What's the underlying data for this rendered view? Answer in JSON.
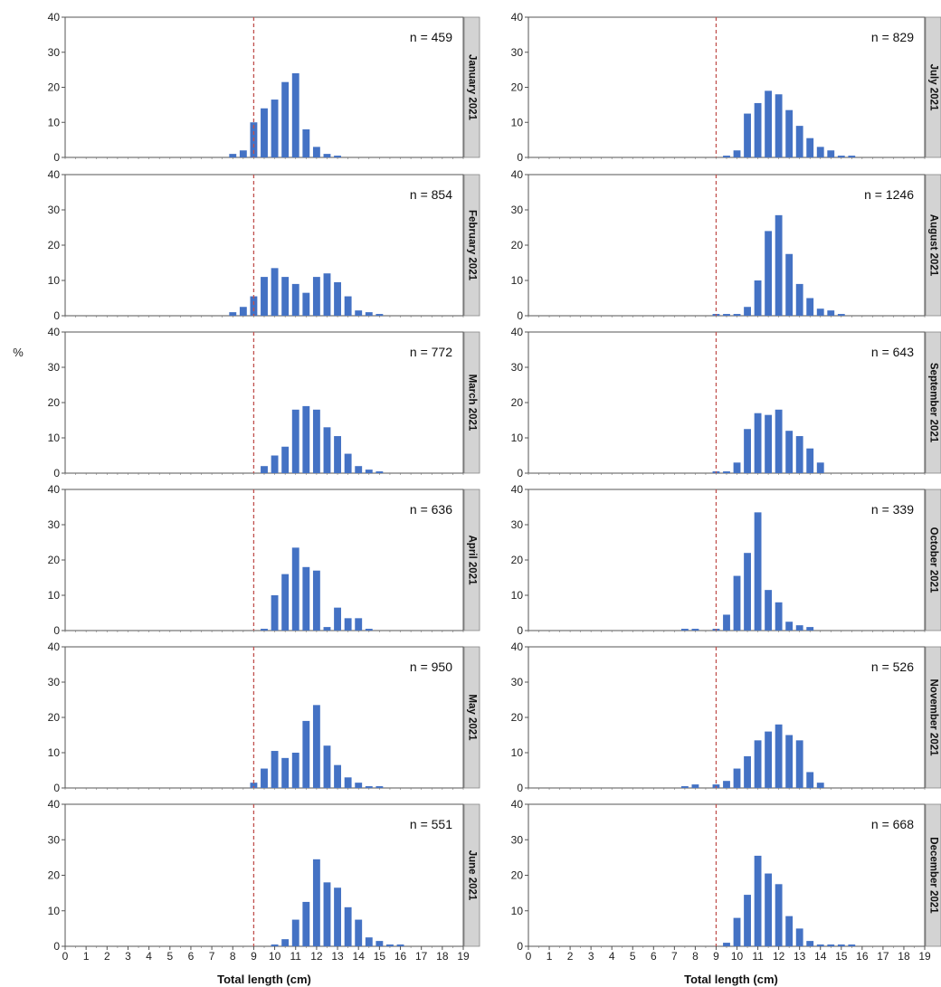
{
  "figure": {
    "ylabel": "%",
    "xlabel": "Total length (cm)",
    "x_ticks": [
      "0",
      "1",
      "2",
      "3",
      "4",
      "5",
      "6",
      "7",
      "8",
      "9",
      "10",
      "11",
      "12",
      "13",
      "14",
      "15",
      "16",
      "17",
      "18",
      "19"
    ],
    "y_ticks": [
      "0",
      "10",
      "20",
      "30",
      "40"
    ],
    "n_prefix": "n = ",
    "colors": {
      "bar": "#4472C4",
      "reference_line": "#C0504D",
      "strip": "#D3D3D3"
    }
  },
  "chart_data": [
    {
      "type": "bar",
      "panel": "January 2021",
      "n": "459",
      "x": [
        8,
        8.5,
        9,
        9.5,
        10,
        10.5,
        11,
        11.5,
        12,
        12.5,
        13
      ],
      "values": [
        1,
        2,
        10,
        14,
        16.5,
        21.5,
        24,
        8,
        3,
        1,
        0.5
      ],
      "xlim": [
        0,
        19
      ],
      "ylim": [
        0,
        40
      ],
      "reference_line_x": 9
    },
    {
      "type": "bar",
      "panel": "February 2021",
      "n": "854",
      "x": [
        8,
        8.5,
        9,
        9.5,
        10,
        10.5,
        11,
        11.5,
        12,
        12.5,
        13,
        13.5,
        14,
        14.5,
        15
      ],
      "values": [
        1,
        2.5,
        5.5,
        11,
        13.5,
        11,
        9,
        6.5,
        11,
        12,
        9.5,
        5.5,
        1.5,
        1,
        0.5
      ],
      "xlim": [
        0,
        19
      ],
      "ylim": [
        0,
        40
      ],
      "reference_line_x": 9
    },
    {
      "type": "bar",
      "panel": "March 2021",
      "n": "772",
      "x": [
        9.5,
        10,
        10.5,
        11,
        11.5,
        12,
        12.5,
        13,
        13.5,
        14,
        14.5,
        15
      ],
      "values": [
        2,
        5,
        7.5,
        18,
        19,
        18,
        13,
        10.5,
        5.5,
        2,
        1,
        0.5
      ],
      "xlim": [
        0,
        19
      ],
      "ylim": [
        0,
        40
      ],
      "reference_line_x": 9
    },
    {
      "type": "bar",
      "panel": "April 2021",
      "n": "636",
      "x": [
        9.5,
        10,
        10.5,
        11,
        11.5,
        12,
        12.5,
        13,
        13.5,
        14,
        14.5
      ],
      "values": [
        0.5,
        10,
        16,
        23.5,
        18,
        17,
        1,
        6.5,
        3.5,
        3.5,
        0.5
      ],
      "xlim": [
        0,
        19
      ],
      "ylim": [
        0,
        40
      ],
      "reference_line_x": 9
    },
    {
      "type": "bar",
      "panel": "May 2021",
      "n": "950",
      "x": [
        9,
        9.5,
        10,
        10.5,
        11,
        11.5,
        12,
        12.5,
        13,
        13.5,
        14,
        14.5,
        15
      ],
      "values": [
        1.5,
        5.5,
        10.5,
        8.5,
        10,
        19,
        23.5,
        12,
        6.5,
        3,
        1.5,
        0.5,
        0.5
      ],
      "xlim": [
        0,
        19
      ],
      "ylim": [
        0,
        40
      ],
      "reference_line_x": 9
    },
    {
      "type": "bar",
      "panel": "June 2021",
      "n": "551",
      "x": [
        10,
        10.5,
        11,
        11.5,
        12,
        12.5,
        13,
        13.5,
        14,
        14.5,
        15,
        15.5,
        16
      ],
      "values": [
        0.5,
        2,
        7.5,
        12.5,
        24.5,
        18,
        16.5,
        11,
        7.5,
        2.5,
        1.5,
        0.5,
        0.5
      ],
      "xlim": [
        0,
        19
      ],
      "ylim": [
        0,
        40
      ],
      "reference_line_x": 9
    },
    {
      "type": "bar",
      "panel": "July 2021",
      "n": "829",
      "x": [
        9.5,
        10,
        10.5,
        11,
        11.5,
        12,
        12.5,
        13,
        13.5,
        14,
        14.5,
        15,
        15.5
      ],
      "values": [
        0.5,
        2,
        12.5,
        15.5,
        19,
        18,
        13.5,
        9,
        5.5,
        3,
        2,
        0.5,
        0.5
      ],
      "xlim": [
        0,
        19
      ],
      "ylim": [
        0,
        40
      ],
      "reference_line_x": 9
    },
    {
      "type": "bar",
      "panel": "August 2021",
      "n": "1246",
      "x": [
        9,
        9.5,
        10,
        10.5,
        11,
        11.5,
        12,
        12.5,
        13,
        13.5,
        14,
        14.5,
        15
      ],
      "values": [
        0.5,
        0.5,
        0.5,
        2.5,
        10,
        24,
        28.5,
        17.5,
        9,
        5,
        2,
        1.5,
        0.5
      ],
      "xlim": [
        0,
        19
      ],
      "ylim": [
        0,
        40
      ],
      "reference_line_x": 9
    },
    {
      "type": "bar",
      "panel": "September 2021",
      "n": "643",
      "x": [
        9,
        9.5,
        10,
        10.5,
        11,
        11.5,
        12,
        12.5,
        13,
        13.5,
        14
      ],
      "values": [
        0.5,
        0.5,
        3,
        12.5,
        17,
        16.5,
        18,
        12,
        10.5,
        7,
        3
      ],
      "xlim": [
        0,
        19
      ],
      "ylim": [
        0,
        40
      ],
      "reference_line_x": 9
    },
    {
      "type": "bar",
      "panel": "October 2021",
      "n": "339",
      "x": [
        7.5,
        8,
        9,
        9.5,
        10,
        10.5,
        11,
        11.5,
        12,
        12.5,
        13,
        13.5
      ],
      "values": [
        0.5,
        0.5,
        0.5,
        4.5,
        15.5,
        22,
        33.5,
        11.5,
        8,
        2.5,
        1.5,
        1
      ],
      "xlim": [
        0,
        19
      ],
      "ylim": [
        0,
        40
      ],
      "reference_line_x": 9
    },
    {
      "type": "bar",
      "panel": "November 2021",
      "n": "526",
      "x": [
        7.5,
        8,
        9,
        9.5,
        10,
        10.5,
        11,
        11.5,
        12,
        12.5,
        13,
        13.5,
        14
      ],
      "values": [
        0.5,
        1,
        1,
        2,
        5.5,
        9,
        13.5,
        16,
        18,
        15,
        13.5,
        4.5,
        1.5
      ],
      "xlim": [
        0,
        19
      ],
      "ylim": [
        0,
        40
      ],
      "reference_line_x": 9
    },
    {
      "type": "bar",
      "panel": "December 2021",
      "n": "668",
      "x": [
        9.5,
        10,
        10.5,
        11,
        11.5,
        12,
        12.5,
        13,
        13.5,
        14,
        14.5,
        15,
        15.5
      ],
      "values": [
        1,
        8,
        14.5,
        25.5,
        20.5,
        17.5,
        8.5,
        5,
        1.5,
        0.5,
        0.5,
        0.5,
        0.5
      ],
      "xlim": [
        0,
        19
      ],
      "ylim": [
        0,
        40
      ],
      "reference_line_x": 9
    }
  ]
}
